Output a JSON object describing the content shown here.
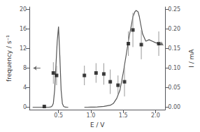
{
  "chart_data": {
    "type": "line",
    "xlabel": "E / V",
    "ylabel": "frequency / s⁻¹",
    "y2label": "I / mA",
    "xlim": [
      0.05,
      2.15
    ],
    "xticks": [
      0.5,
      {
        "value": 1,
        "label": "1.0"
      },
      1.5,
      {
        "value": 2,
        "label": "2.0"
      }
    ],
    "ylim": [
      -0.5,
      20.5
    ],
    "yticks": [
      0,
      4,
      8,
      12,
      16,
      20
    ],
    "y2lim": [
      -0.00625,
      0.25625
    ],
    "y2ticks": [
      {
        "value": 0,
        "label": "0.00"
      },
      0.05,
      {
        "value": 0.1,
        "label": "0.10"
      },
      0.15,
      {
        "value": 0.2,
        "label": "0.20"
      },
      0.25
    ],
    "grid": false,
    "series": [
      {
        "type": "line",
        "color": "#555555",
        "x": [
          0.1,
          0.15,
          0.2,
          0.25,
          0.3,
          0.35,
          0.38,
          0.4,
          0.42,
          0.44,
          0.46,
          0.48,
          0.5,
          0.52,
          0.54,
          0.56,
          0.58,
          0.6,
          0.62,
          0.65
        ],
        "values": [
          0,
          0,
          0,
          0,
          0,
          0,
          0.05,
          0.2,
          0.8,
          3.5,
          8.5,
          13.5,
          16.5,
          10.5,
          3.5,
          0.7,
          0.15,
          0.03,
          0.01,
          0.0
        ]
      },
      {
        "type": "line",
        "color": "#555555",
        "x": [
          0.9,
          0.95,
          1.0,
          1.05,
          1.1,
          1.2,
          1.3,
          1.35,
          1.4,
          1.45,
          1.5,
          1.55,
          1.58,
          1.6,
          1.63,
          1.65,
          1.68,
          1.7,
          1.73,
          1.75,
          1.77,
          1.8,
          1.85,
          1.9,
          1.95,
          2.0,
          2.05,
          2.1
        ],
        "values": [
          0.0,
          0.0,
          0.01,
          0.02,
          0.05,
          0.15,
          0.4,
          0.8,
          1.8,
          3.5,
          7.0,
          11.0,
          13.5,
          15.0,
          17.0,
          18.5,
          19.5,
          19.8,
          19.5,
          18.5,
          17.0,
          15.0,
          13.5,
          13.8,
          13.5,
          13.2,
          13.0,
          12.8
        ]
      },
      {
        "type": "scatter",
        "color": "#111111",
        "marker": "square",
        "x": [
          0.28,
          0.42,
          0.47,
          0.9,
          1.08,
          1.2,
          1.3,
          1.42,
          1.52,
          1.58,
          1.65,
          1.78,
          2.05
        ],
        "values": [
          0.15,
          7.0,
          6.5,
          6.5,
          7.0,
          6.8,
          5.2,
          4.5,
          5.2,
          13.0,
          15.8,
          12.8,
          13.0
        ],
        "errors": [
          0.3,
          2.2,
          2.0,
          2.0,
          2.0,
          2.2,
          2.5,
          2.0,
          3.0,
          2.5,
          3.5,
          3.0,
          2.5
        ]
      }
    ],
    "arrows": [
      {
        "from": [
          0.22,
          8.0
        ],
        "to": [
          0.11,
          8.0
        ]
      },
      {
        "from": [
          2.04,
          13.3
        ],
        "to": [
          2.12,
          12.7
        ]
      }
    ]
  }
}
